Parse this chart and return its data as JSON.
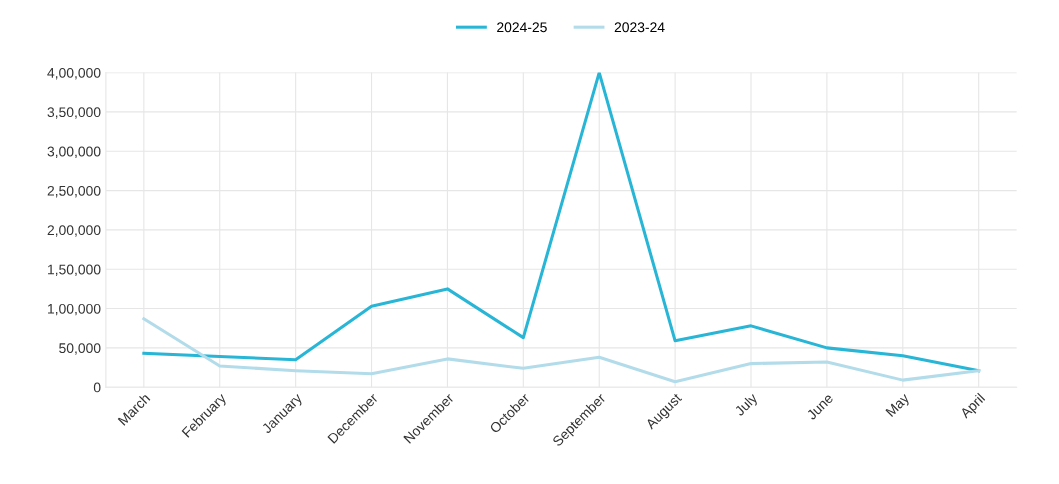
{
  "chart_data": {
    "type": "line",
    "categories": [
      "March",
      "February",
      "January",
      "December",
      "November",
      "October",
      "September",
      "August",
      "July",
      "June",
      "May",
      "April"
    ],
    "series": [
      {
        "name": "2024-25",
        "color": "#29b6d6",
        "values": [
          43000,
          39000,
          35000,
          103000,
          125000,
          63000,
          400000,
          59000,
          78000,
          50000,
          40000,
          21000
        ]
      },
      {
        "name": "2023-24",
        "color": "#b3dcea",
        "values": [
          87000,
          27000,
          21000,
          17000,
          36000,
          24000,
          38000,
          7000,
          30000,
          32000,
          9000,
          21000
        ]
      }
    ],
    "ylim": [
      0,
      400000
    ],
    "yticks": [
      {
        "value": 0,
        "label": "0"
      },
      {
        "value": 50000,
        "label": "50,000"
      },
      {
        "value": 100000,
        "label": "1,00,000"
      },
      {
        "value": 150000,
        "label": "1,50,000"
      },
      {
        "value": 200000,
        "label": "2,00,000"
      },
      {
        "value": 250000,
        "label": "2,50,000"
      },
      {
        "value": 300000,
        "label": "3,00,000"
      },
      {
        "value": 350000,
        "label": "3,50,000"
      },
      {
        "value": 400000,
        "label": "4,00,000"
      }
    ],
    "grid": true,
    "legend": "top",
    "marker": "none",
    "line_style": "solid"
  }
}
